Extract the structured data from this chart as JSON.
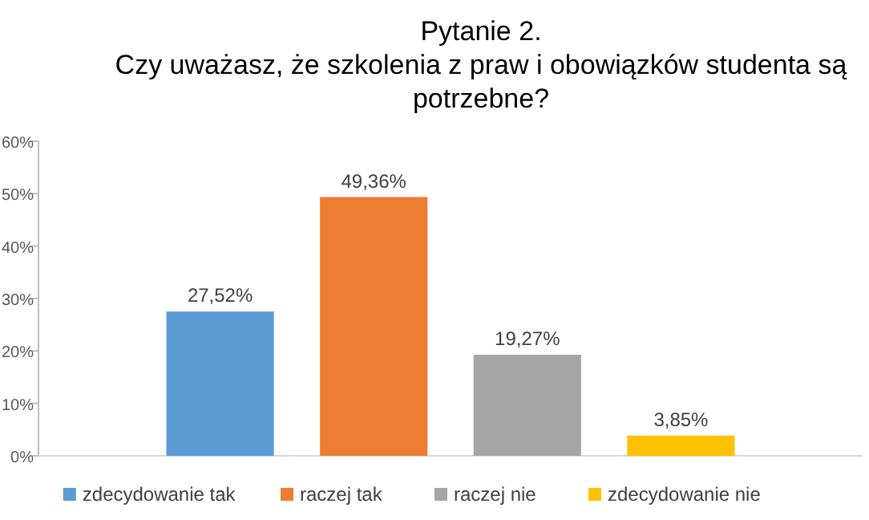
{
  "chart_data": {
    "type": "bar",
    "title": "Pytanie 2.\nCzy uważasz, że szkolenia z praw i obowiązków studenta są\npotrzebne?",
    "categories": [
      null
    ],
    "series": [
      {
        "name": "zdecydowanie tak",
        "color": "#5b9bd5",
        "values": [
          27.52
        ],
        "value_labels": [
          "27,52%"
        ]
      },
      {
        "name": "raczej tak",
        "color": "#ed7d31",
        "values": [
          49.36
        ],
        "value_labels": [
          "49,36%"
        ]
      },
      {
        "name": "raczej nie",
        "color": "#a5a5a5",
        "values": [
          19.27
        ],
        "value_labels": [
          "19,27%"
        ]
      },
      {
        "name": "zdecydowanie nie",
        "color": "#ffc000",
        "values": [
          3.85
        ],
        "value_labels": [
          "3,85%"
        ]
      }
    ],
    "ylim": [
      0,
      60
    ],
    "yticks": [
      {
        "value": 0,
        "label": "0%"
      },
      {
        "value": 10,
        "label": "10%"
      },
      {
        "value": 20,
        "label": "20%"
      },
      {
        "value": 30,
        "label": "30%"
      },
      {
        "value": 40,
        "label": "40%"
      },
      {
        "value": 50,
        "label": "50%"
      },
      {
        "value": 60,
        "label": "60%"
      }
    ],
    "legend": "bottom"
  }
}
